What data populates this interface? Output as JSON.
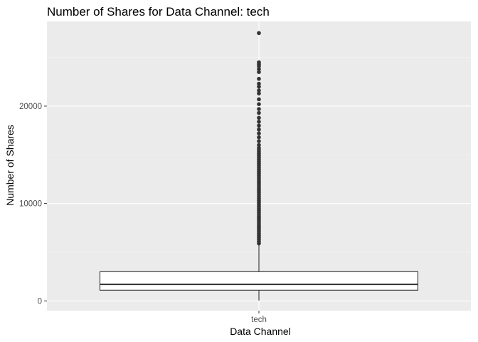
{
  "chart_data": {
    "type": "boxplot",
    "title": "Number of Shares for Data Channel: tech",
    "xlabel": "Data Channel",
    "ylabel": "Number of Shares",
    "categories": [
      "tech"
    ],
    "ylim": [
      -1000,
      28700
    ],
    "yticks": [
      0,
      10000,
      20000
    ],
    "ytick_labels": [
      "0",
      "10000",
      "20000"
    ],
    "grid": true,
    "boxes": [
      {
        "category": "tech",
        "whisker_low": 36,
        "q1": 1100,
        "median": 1700,
        "q3": 3000,
        "whisker_high": 5800,
        "outliers": [
          5900,
          6100,
          6300,
          6500,
          6700,
          6900,
          7100,
          7300,
          7500,
          7700,
          7900,
          8100,
          8300,
          8500,
          8700,
          8900,
          9100,
          9300,
          9500,
          9700,
          9900,
          10100,
          10300,
          10500,
          10700,
          10900,
          11100,
          11300,
          11500,
          11700,
          11900,
          12100,
          12300,
          12500,
          12700,
          12900,
          13100,
          13300,
          13500,
          13700,
          13900,
          14100,
          14300,
          14500,
          14700,
          14900,
          15100,
          15300,
          15500,
          15700,
          16000,
          16400,
          16800,
          17200,
          17600,
          18000,
          18400,
          18800,
          19300,
          19700,
          20200,
          20700,
          21300,
          21600,
          22000,
          22300,
          22800,
          23500,
          23800,
          24100,
          24300,
          24500,
          27500
        ]
      }
    ]
  }
}
